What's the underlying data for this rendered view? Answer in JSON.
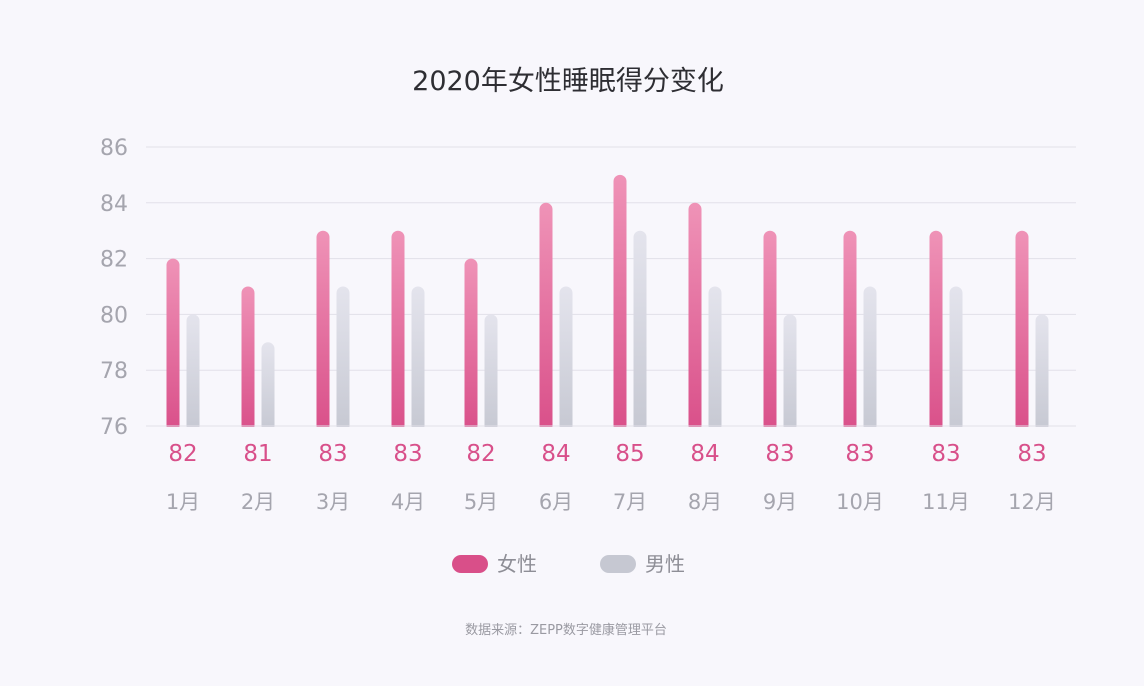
{
  "chart_data": {
    "type": "bar",
    "title": "2020年女性睡眠得分变化",
    "categories": [
      "1月",
      "2月",
      "3月",
      "4月",
      "5月",
      "6月",
      "7月",
      "8月",
      "9月",
      "10月",
      "11月",
      "12月"
    ],
    "series": [
      {
        "name": "女性",
        "values": [
          82,
          81,
          83,
          83,
          82,
          84,
          85,
          84,
          83,
          83,
          83,
          83
        ]
      },
      {
        "name": "男性",
        "values": [
          80,
          79,
          81,
          81,
          80,
          81,
          83,
          81,
          80,
          81,
          81,
          80
        ]
      }
    ],
    "data_labels": [
      "82",
      "81",
      "83",
      "83",
      "82",
      "84",
      "85",
      "84",
      "83",
      "83",
      "83",
      "83"
    ],
    "ylim": [
      76,
      86
    ],
    "yticks": [
      "76",
      "78",
      "80",
      "82",
      "84",
      "86"
    ],
    "grid": true,
    "legend_position": "bottom-center",
    "colors": {
      "female_top": "#ef93b7",
      "female_bottom": "#d94f89",
      "male_top": "#e4e4ed",
      "male_bottom": "#c6c8d2",
      "female_label": "#d8508a",
      "axis_text": "#a5a5ae",
      "grid": "#e2e0e9",
      "title": "#2e2e33"
    },
    "source": "数据来源：ZEPP数字健康管理平台"
  }
}
